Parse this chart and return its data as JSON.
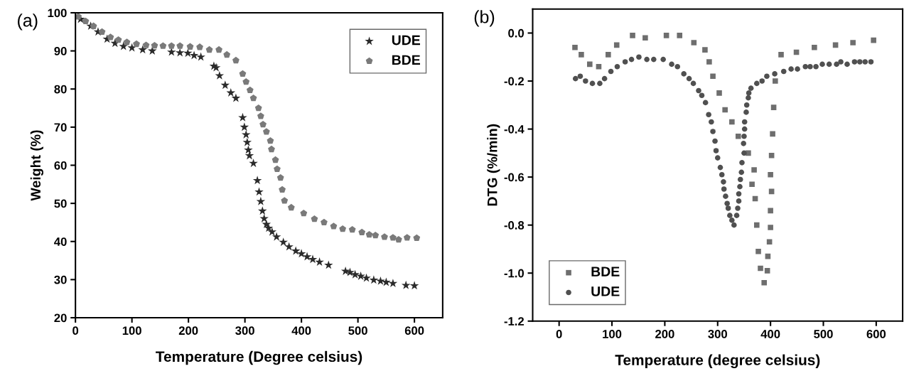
{
  "chart_data": [
    {
      "type": "scatter",
      "xlabel": "Temperature (Degree celsius)",
      "ylabel": "Weight (%)",
      "annotations": [
        "(a)"
      ],
      "xlim": [
        0,
        650
      ],
      "ylim": [
        20,
        100
      ],
      "xticks": [
        0,
        100,
        200,
        300,
        400,
        500,
        600
      ],
      "yticks": [
        20,
        30,
        40,
        50,
        60,
        70,
        80,
        90,
        100
      ],
      "grid": false,
      "legend": "top right",
      "series": [
        {
          "name": "UDE",
          "color": "#2b2b2b",
          "marker": "star",
          "x": [
            9,
            27,
            40,
            56,
            70,
            85,
            100,
            119,
            136,
            170,
            185,
            199,
            210,
            222,
            245,
            249,
            255,
            265,
            275,
            284,
            296,
            299,
            302,
            304,
            306,
            308,
            315,
            322,
            325,
            328,
            331,
            334,
            338,
            342,
            348,
            356,
            368,
            378,
            390,
            400,
            410,
            420,
            432,
            448,
            478,
            486,
            495,
            505,
            515,
            528,
            540,
            550,
            562,
            585,
            600
          ],
          "values": [
            98.3,
            96.5,
            95,
            93.1,
            92,
            91.2,
            90.8,
            90.3,
            90,
            89.7,
            89.5,
            89.4,
            88.8,
            88.4,
            86,
            85.6,
            83.5,
            81,
            79,
            77.6,
            72.5,
            70,
            68,
            66,
            64,
            62.5,
            60.5,
            56,
            53,
            50.5,
            48,
            46,
            44.5,
            43.5,
            42.5,
            41.2,
            39.8,
            38.6,
            37.5,
            36.8,
            36,
            35.3,
            34.6,
            33.8,
            32.2,
            31.9,
            31.3,
            30.9,
            30.4,
            29.9,
            29.6,
            29.3,
            29,
            28.5,
            28.4
          ]
        },
        {
          "name": "BDE",
          "color": "#7a7a7a",
          "x": [
            5,
            18,
            32,
            47,
            62,
            76,
            91,
            108,
            125,
            140,
            155,
            170,
            185,
            203,
            220,
            237,
            254,
            268,
            284,
            296,
            302,
            309,
            315,
            324,
            328,
            332,
            338,
            345,
            347,
            354,
            357,
            363,
            366,
            370,
            382,
            404,
            423,
            440,
            457,
            473,
            490,
            507,
            520,
            531,
            547,
            562,
            572,
            587,
            604
          ],
          "values": [
            99,
            97.8,
            96.5,
            95,
            93.6,
            92.9,
            92.3,
            91.8,
            91.5,
            91.4,
            91.3,
            91.3,
            91.3,
            91.1,
            91,
            90.3,
            90.3,
            89,
            87.5,
            84,
            81.9,
            79.7,
            77.6,
            75,
            72.9,
            70.7,
            68.8,
            66.4,
            64.2,
            61.4,
            59,
            56.7,
            53.6,
            50.7,
            48.9,
            47.4,
            45.9,
            45,
            44,
            43.3,
            43.1,
            42.4,
            41.8,
            41.6,
            41.2,
            41,
            40.5,
            41,
            40.9
          ]
        }
      ]
    },
    {
      "type": "scatter",
      "xlabel": "Temperature (degree celsius)",
      "ylabel": "DTG (%/min)",
      "annotations": [
        "(b)"
      ],
      "xlim": [
        -50,
        650
      ],
      "ylim": [
        -1.2,
        0.1
      ],
      "xticks": [
        0,
        100,
        200,
        300,
        400,
        500,
        600
      ],
      "yticks": [
        {
          "value": -1.2,
          "label": "-1.2"
        },
        {
          "value": -1.0,
          "label": "-1.0"
        },
        {
          "value": -0.8,
          "label": "-0.8"
        },
        {
          "value": -0.6,
          "label": "-0.6"
        },
        {
          "value": -0.4,
          "label": "-0.4"
        },
        {
          "value": -0.2,
          "label": "-0.2"
        },
        {
          "value": 0.0,
          "label": "0.0"
        }
      ],
      "grid": false,
      "legend": "bottom left",
      "series": [
        {
          "name": "BDE",
          "color": "#6e6e6e",
          "marker": "square",
          "x": [
            30,
            42,
            58,
            75,
            93,
            109,
            139,
            163,
            203,
            228,
            255,
            276,
            284,
            291,
            303,
            314,
            327,
            339,
            358,
            369,
            365,
            371,
            374,
            377,
            381,
            388,
            394,
            395,
            398,
            400,
            400,
            402,
            400,
            402,
            404,
            406,
            409,
            420,
            449,
            483,
            523,
            556,
            595
          ],
          "values": [
            -0.06,
            -0.09,
            -0.13,
            -0.14,
            -0.09,
            -0.05,
            -0.01,
            -0.02,
            -0.01,
            -0.01,
            -0.04,
            -0.07,
            -0.12,
            -0.18,
            -0.25,
            -0.32,
            -0.37,
            -0.43,
            -0.5,
            -0.57,
            -0.63,
            -0.69,
            -0.8,
            -0.91,
            -0.98,
            -1.04,
            -0.99,
            -0.93,
            -0.87,
            -0.81,
            -0.74,
            -0.66,
            -0.59,
            -0.51,
            -0.42,
            -0.31,
            -0.2,
            -0.09,
            -0.08,
            -0.06,
            -0.05,
            -0.04,
            -0.03
          ]
        },
        {
          "name": "UDE",
          "color": "#505050",
          "marker": "circle",
          "x": [
            31,
            40,
            50,
            63,
            77,
            86,
            98,
            110,
            125,
            137,
            151,
            166,
            179,
            197,
            213,
            224,
            236,
            246,
            254,
            264,
            270,
            277,
            283,
            288,
            291,
            295,
            297,
            300,
            305,
            308,
            311,
            312,
            315,
            318,
            320,
            323,
            327,
            331,
            336,
            338,
            340,
            340,
            342,
            343,
            345,
            346,
            350,
            349,
            350,
            351,
            351,
            354,
            355,
            358,
            359,
            363,
            374,
            384,
            393,
            408,
            425,
            439,
            451,
            466,
            475,
            486,
            498,
            511,
            525,
            533,
            545,
            559,
            569,
            579,
            590
          ],
          "values": [
            -0.19,
            -0.18,
            -0.2,
            -0.21,
            -0.21,
            -0.19,
            -0.16,
            -0.14,
            -0.12,
            -0.11,
            -0.1,
            -0.11,
            -0.11,
            -0.11,
            -0.13,
            -0.14,
            -0.17,
            -0.19,
            -0.21,
            -0.24,
            -0.26,
            -0.29,
            -0.34,
            -0.37,
            -0.41,
            -0.45,
            -0.49,
            -0.52,
            -0.56,
            -0.59,
            -0.62,
            -0.65,
            -0.68,
            -0.71,
            -0.73,
            -0.76,
            -0.78,
            -0.8,
            -0.76,
            -0.73,
            -0.7,
            -0.67,
            -0.64,
            -0.61,
            -0.58,
            -0.54,
            -0.5,
            -0.46,
            -0.43,
            -0.4,
            -0.37,
            -0.33,
            -0.3,
            -0.27,
            -0.25,
            -0.23,
            -0.21,
            -0.2,
            -0.18,
            -0.17,
            -0.16,
            -0.15,
            -0.15,
            -0.14,
            -0.14,
            -0.14,
            -0.13,
            -0.13,
            -0.13,
            -0.12,
            -0.13,
            -0.12,
            -0.12,
            -0.12,
            -0.12
          ]
        }
      ]
    }
  ]
}
